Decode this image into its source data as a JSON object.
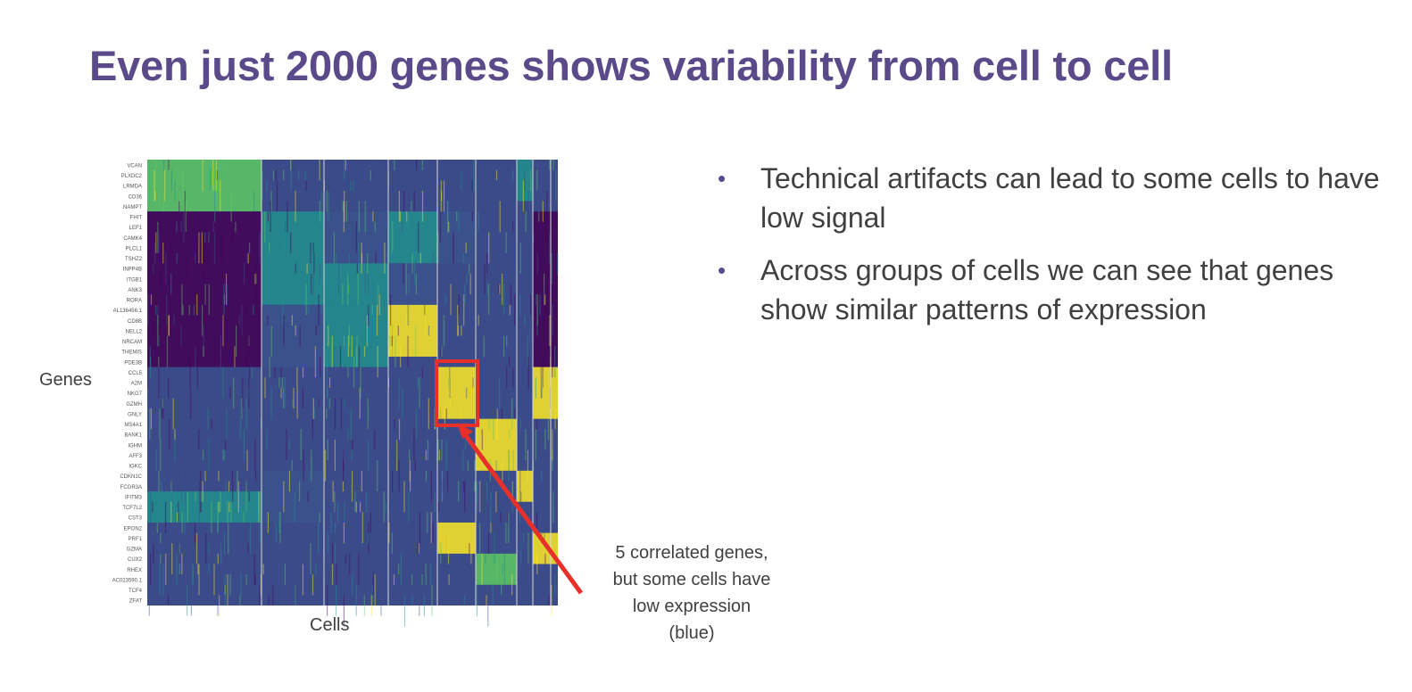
{
  "slide": {
    "title": "Even just 2000 genes shows variability from cell to cell"
  },
  "figure": {
    "y_axis_label": "Genes",
    "x_axis_label": "Cells",
    "gene_names": [
      "VCAN",
      "PLXDC2",
      "LRMDA",
      "CD36",
      "NAMPT",
      "FHIT",
      "LEF1",
      "CAMK4",
      "PLCL1",
      "TSHZ2",
      "INPP4B",
      "ITGB1",
      "ANK3",
      "RORA",
      "AL136456.1",
      "CD8B",
      "NELL2",
      "NRCAM",
      "THEMIS",
      "PDE3B",
      "CCL5",
      "A2M",
      "NKG7",
      "GZMH",
      "GNLY",
      "MS4A1",
      "BANK1",
      "IGHM",
      "AFF3",
      "IGKC",
      "CDKN1C",
      "FCGR3A",
      "IFITM3",
      "TCF7L2",
      "CST3",
      "EPON2",
      "PRF1",
      "GZMA",
      "CUX2",
      "RHEX",
      "AC023590.1",
      "TCF4",
      "ZFAT"
    ],
    "colormap": [
      "#440154",
      "#3b528b",
      "#21918c",
      "#5ec962",
      "#fde725"
    ],
    "highlight_color": "#e8302a"
  },
  "annotation": {
    "text": "5 correlated genes,\nbut some cells have\nlow expression\n(blue)"
  },
  "bullets": [
    {
      "text": "Technical artifacts can lead to some cells to have low signal"
    },
    {
      "text": "Across groups of cells we can see that genes show similar patterns of expression"
    }
  ]
}
